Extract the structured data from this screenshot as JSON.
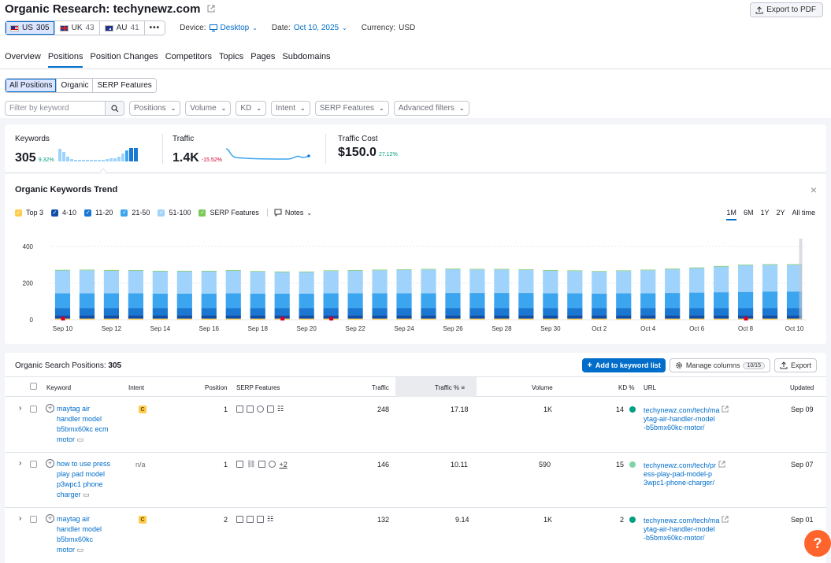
{
  "header": {
    "title_prefix": "Organic Research:",
    "domain": "techynewz.com",
    "export_pdf": "Export to PDF"
  },
  "databases": [
    {
      "code": "US",
      "count": "305",
      "active": true
    },
    {
      "code": "UK",
      "count": "43",
      "active": false
    },
    {
      "code": "AU",
      "count": "41",
      "active": false
    }
  ],
  "more": "•••",
  "device": {
    "label": "Device:",
    "value": "Desktop"
  },
  "date": {
    "label": "Date:",
    "value": "Oct 10, 2025"
  },
  "currency": {
    "label": "Currency:",
    "value": "USD"
  },
  "tabs": [
    "Overview",
    "Positions",
    "Position Changes",
    "Competitors",
    "Topics",
    "Pages",
    "Subdomains"
  ],
  "segments": [
    "All Positions",
    "Organic",
    "SERP Features"
  ],
  "filters": {
    "search_placeholder": "Filter by keyword",
    "dropdowns": [
      "Positions",
      "Volume",
      "KD",
      "Intent",
      "SERP Features",
      "Advanced filters"
    ]
  },
  "summary": {
    "keywords": {
      "label": "Keywords",
      "value": "305",
      "change": "9.32%"
    },
    "traffic": {
      "label": "Traffic",
      "value": "1.4K",
      "change": "-15.52%"
    },
    "traffic_cost": {
      "label": "Traffic Cost",
      "value": "$150.0",
      "change": "27.12%"
    }
  },
  "trend": {
    "title": "Organic Keywords Trend",
    "legend": [
      {
        "name": "Top 3",
        "color": "#ffcc4b"
      },
      {
        "name": "4-10",
        "color": "#0f4fa8"
      },
      {
        "name": "11-20",
        "color": "#1a77d2"
      },
      {
        "name": "21-50",
        "color": "#3ca5ef"
      },
      {
        "name": "51-100",
        "color": "#9fd3fb"
      },
      {
        "name": "SERP Features",
        "color": "#78c957"
      }
    ],
    "notes": "Notes",
    "ranges": [
      "1M",
      "6M",
      "1Y",
      "2Y",
      "All time"
    ],
    "active_range": "1M"
  },
  "chart_data": {
    "type": "bar",
    "stacked": true,
    "title": "Organic Keywords Trend",
    "ylim": [
      0,
      400
    ],
    "yticks": [
      0,
      200,
      400
    ],
    "xtick_labels": [
      "Sep 10",
      "Sep 12",
      "Sep 14",
      "Sep 16",
      "Sep 18",
      "Sep 20",
      "Sep 22",
      "Sep 24",
      "Sep 26",
      "Sep 28",
      "Sep 30",
      "Oct 2",
      "Oct 4",
      "Oct 6",
      "Oct 8",
      "Oct 10"
    ],
    "categories": [
      "Sep 10",
      "Sep 11",
      "Sep 12",
      "Sep 13",
      "Sep 14",
      "Sep 15",
      "Sep 16",
      "Sep 17",
      "Sep 18",
      "Sep 19",
      "Sep 20",
      "Sep 21",
      "Sep 22",
      "Sep 23",
      "Sep 24",
      "Sep 25",
      "Sep 26",
      "Sep 27",
      "Sep 28",
      "Sep 29",
      "Sep 30",
      "Oct 1",
      "Oct 2",
      "Oct 3",
      "Oct 4",
      "Oct 5",
      "Oct 6",
      "Oct 7",
      "Oct 8",
      "Oct 9",
      "Oct 10"
    ],
    "series": [
      {
        "name": "Top 3",
        "color": "#ffcc4b",
        "values": [
          6,
          6,
          6,
          6,
          6,
          6,
          6,
          6,
          6,
          6,
          6,
          6,
          6,
          6,
          6,
          6,
          6,
          6,
          6,
          6,
          6,
          6,
          6,
          6,
          6,
          6,
          6,
          6,
          6,
          6,
          6
        ]
      },
      {
        "name": "4-10",
        "color": "#0f4fa8",
        "values": [
          18,
          18,
          18,
          18,
          18,
          18,
          18,
          18,
          18,
          18,
          18,
          18,
          18,
          18,
          18,
          18,
          18,
          18,
          18,
          18,
          18,
          18,
          18,
          18,
          18,
          18,
          18,
          18,
          18,
          18,
          18
        ]
      },
      {
        "name": "11-20",
        "color": "#1a77d2",
        "values": [
          40,
          40,
          40,
          40,
          40,
          40,
          40,
          40,
          40,
          40,
          40,
          40,
          40,
          40,
          40,
          40,
          40,
          40,
          40,
          40,
          40,
          40,
          40,
          40,
          40,
          40,
          40,
          40,
          40,
          40,
          40
        ]
      },
      {
        "name": "21-50",
        "color": "#3ca5ef",
        "values": [
          80,
          80,
          80,
          80,
          78,
          78,
          78,
          80,
          78,
          78,
          78,
          80,
          80,
          80,
          80,
          80,
          82,
          82,
          82,
          82,
          80,
          80,
          78,
          80,
          80,
          82,
          84,
          86,
          88,
          90,
          90
        ]
      },
      {
        "name": "51-100",
        "color": "#9fd3fb",
        "values": [
          125,
          126,
          124,
          124,
          122,
          122,
          122,
          124,
          120,
          118,
          118,
          122,
          124,
          126,
          128,
          130,
          130,
          128,
          128,
          126,
          124,
          122,
          120,
          122,
          126,
          130,
          134,
          140,
          146,
          146,
          146
        ]
      },
      {
        "name": "SERP Features",
        "color": "#78c957",
        "values": [
          3,
          3,
          3,
          3,
          3,
          3,
          3,
          3,
          3,
          3,
          3,
          3,
          3,
          3,
          3,
          3,
          3,
          3,
          3,
          3,
          3,
          3,
          3,
          3,
          3,
          3,
          3,
          3,
          3,
          3,
          3
        ]
      }
    ]
  },
  "positions": {
    "title": "Organic Search Positions:",
    "count": "305",
    "add_to_list": "Add to keyword list",
    "manage_columns": "Manage columns",
    "columns_badge": "10/15",
    "export": "Export",
    "columns": [
      "Keyword",
      "Intent",
      "Position",
      "SERP Features",
      "Traffic",
      "Traffic %",
      "Volume",
      "KD %",
      "URL",
      "Updated"
    ],
    "rows": [
      {
        "keyword": [
          "maytag air",
          "handler model",
          "b5bmx60kc ecm",
          "motor"
        ],
        "intent": "C",
        "position": "1",
        "serp_more": "",
        "traffic": "248",
        "traffic_pct": "17.18",
        "volume": "1K",
        "kd": "14",
        "kd_color": "#009f81",
        "url": [
          "techynewz.com/tech/ma",
          "ytag-air-handler-model",
          "-b5bmx60kc-motor/"
        ],
        "updated": "Sep 09"
      },
      {
        "keyword": [
          "how to use press",
          "play pad model",
          "p3wpc1 phone",
          "charger"
        ],
        "intent": "n/a",
        "position": "1",
        "serp_more": "+2",
        "traffic": "146",
        "traffic_pct": "10.11",
        "volume": "590",
        "kd": "15",
        "kd_color": "#7ed4a8",
        "url": [
          "techynewz.com/tech/pr",
          "ess-play-pad-model-p",
          "3wpc1-phone-charger/"
        ],
        "updated": "Sep 07"
      },
      {
        "keyword": [
          "maytag air",
          "handler model",
          "b5bmx60kc",
          "motor"
        ],
        "intent": "C",
        "position": "2",
        "serp_more": "",
        "traffic": "132",
        "traffic_pct": "9.14",
        "volume": "1K",
        "kd": "2",
        "kd_color": "#009f81",
        "url": [
          "techynewz.com/tech/ma",
          "ytag-air-handler-model",
          "-b5bmx60kc-motor/"
        ],
        "updated": "Sep 01"
      }
    ]
  },
  "help": "?"
}
